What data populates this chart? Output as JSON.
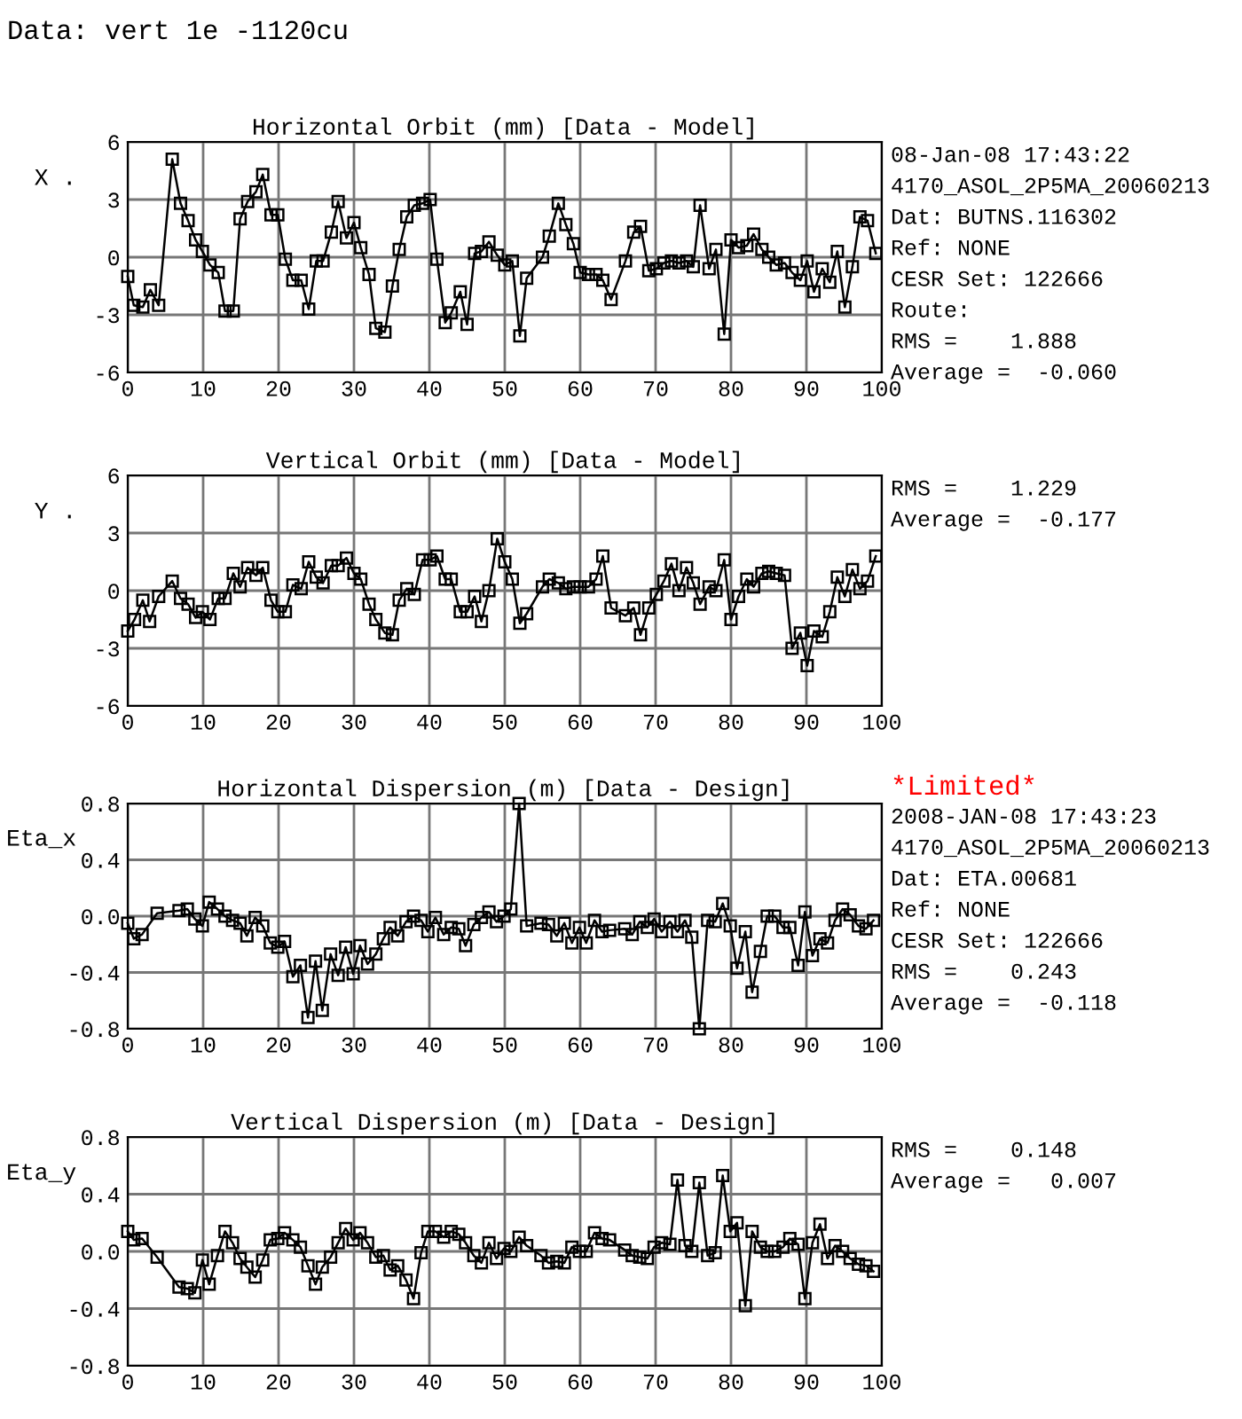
{
  "chart_data": [
    {
      "type": "line",
      "title": "Horizontal Orbit (mm) [Data - Model]",
      "ylabel": "X .",
      "annotations": [
        "Data: vert 1e -1120cu",
        "08-Jan-08 17:43:22",
        "4170_ASOL_2P5MA_20060213",
        "Dat: BUTNS.116302",
        "Ref: NONE",
        "CESR Set: 122666",
        "Route:",
        "RMS =    1.888",
        "Average =  -0.060"
      ],
      "x": [
        0,
        0.8,
        2,
        3,
        4.1,
        5.9,
        7,
        8,
        9,
        9.9,
        10.9,
        12,
        12.9,
        14,
        14.9,
        15.9,
        17,
        17.9,
        19,
        19.9,
        20.9,
        21.9,
        23,
        24,
        25,
        25.9,
        27,
        27.9,
        29,
        30,
        30.9,
        32,
        32.9,
        34.1,
        35.1,
        36,
        37,
        38,
        39.1,
        40.1,
        41,
        42.1,
        42.9,
        44.1,
        45,
        46,
        46.9,
        47.9,
        49,
        50,
        51,
        52,
        52.9,
        55,
        55.9,
        57.1,
        58.1,
        59.1,
        60,
        61.1,
        62.1,
        63,
        64.1,
        66,
        67.1,
        68,
        69.1,
        70.1,
        71.1,
        72.1,
        73.1,
        74.1,
        75,
        75.9,
        77.1,
        78,
        79.1,
        80,
        81,
        82.1,
        83,
        84.1,
        85,
        86,
        87.1,
        88.1,
        89.2,
        90.1,
        91,
        92.1,
        93.1,
        94.1,
        95.1,
        96.1,
        97.1,
        98.1,
        99.2
      ],
      "series": [
        {
          "color": "#000000",
          "values": [
            -1.0,
            -2.5,
            -2.6,
            -1.7,
            -2.5,
            5.1,
            2.8,
            1.9,
            0.9,
            0.3,
            -0.4,
            -0.8,
            -2.8,
            -2.8,
            2.0,
            2.9,
            3.4,
            4.3,
            2.2,
            2.2,
            -0.1,
            -1.2,
            -1.2,
            -2.7,
            -0.2,
            -0.2,
            1.3,
            2.9,
            1.0,
            1.8,
            0.5,
            -0.9,
            -3.7,
            -3.9,
            -1.5,
            0.4,
            2.1,
            2.7,
            2.8,
            3.0,
            -0.1,
            -3.4,
            -2.9,
            -1.8,
            -3.5,
            0.2,
            0.3,
            0.8,
            0.1,
            -0.4,
            -0.2,
            -4.1,
            -1.1,
            0.0,
            1.1,
            2.8,
            1.7,
            0.7,
            -0.8,
            -0.9,
            -0.9,
            -1.2,
            -2.2,
            -0.2,
            1.3,
            1.6,
            -0.7,
            -0.6,
            -0.3,
            -0.2,
            -0.3,
            -0.2,
            -0.5,
            2.7,
            -0.6,
            0.4,
            -4.0,
            0.9,
            0.5,
            0.6,
            1.2,
            0.4,
            0.0,
            -0.4,
            -0.3,
            -0.8,
            -1.2,
            -0.2,
            -1.8,
            -0.6,
            -1.3,
            0.3,
            -2.6,
            -0.5,
            2.1,
            1.9,
            0.2
          ]
        }
      ],
      "xlim": [
        0,
        100
      ],
      "xticks": [
        0,
        10,
        20,
        30,
        40,
        50,
        60,
        70,
        80,
        90,
        100
      ],
      "ylim": [
        -6,
        6
      ],
      "yticks": [
        -6,
        -3,
        0,
        3,
        6
      ],
      "grid": true,
      "marker": "square",
      "line_style": "solid"
    },
    {
      "type": "line",
      "title": "Vertical Orbit (mm) [Data - Model]",
      "ylabel": "Y .",
      "annotations": [
        "RMS =    1.229",
        "Average =  -0.177"
      ],
      "x": [
        0,
        0.9,
        2,
        2.9,
        4.1,
        5.9,
        7,
        8,
        9,
        9.9,
        10.9,
        12,
        12.9,
        14,
        14.9,
        15.9,
        17,
        17.9,
        19,
        19.9,
        20.9,
        21.9,
        23,
        24,
        25,
        25.9,
        27,
        27.9,
        29,
        30,
        30.9,
        32,
        32.9,
        34.1,
        35.1,
        36,
        37,
        38,
        39.1,
        40.1,
        41,
        42.1,
        42.9,
        44.1,
        45,
        46,
        46.9,
        47.9,
        49,
        50,
        51,
        52,
        52.9,
        55,
        55.9,
        57.1,
        58.1,
        59.1,
        60,
        61.1,
        62.1,
        63,
        64.1,
        66,
        67.1,
        68,
        69.1,
        70.1,
        71.1,
        72.1,
        73.1,
        74.1,
        75,
        75.9,
        77.1,
        78,
        79.1,
        80,
        81,
        82.1,
        83,
        84.1,
        85,
        86,
        87.1,
        88.1,
        89.2,
        90.1,
        91,
        92.1,
        93.1,
        94.1,
        95.1,
        96.1,
        97.1,
        98.1,
        99.2
      ],
      "series": [
        {
          "color": "#000000",
          "values": [
            -2.1,
            -1.5,
            -0.5,
            -1.6,
            -0.3,
            0.5,
            -0.4,
            -0.7,
            -1.4,
            -1.1,
            -1.5,
            -0.4,
            -0.4,
            0.9,
            0.2,
            1.2,
            0.8,
            1.2,
            -0.5,
            -1.1,
            -1.1,
            0.3,
            0.1,
            1.5,
            0.7,
            0.4,
            1.3,
            1.3,
            1.7,
            0.9,
            0.6,
            -0.7,
            -1.5,
            -2.2,
            -2.3,
            -0.5,
            0.1,
            -0.2,
            1.6,
            1.6,
            1.8,
            0.6,
            0.6,
            -1.1,
            -1.1,
            -0.3,
            -1.6,
            0.0,
            2.7,
            1.5,
            0.6,
            -1.7,
            -1.2,
            0.2,
            0.6,
            0.4,
            0.1,
            0.2,
            0.2,
            0.2,
            0.6,
            1.8,
            -0.9,
            -1.3,
            -0.9,
            -2.3,
            -0.9,
            -0.2,
            0.5,
            1.4,
            0.0,
            1.2,
            0.4,
            -0.7,
            0.2,
            0.0,
            1.6,
            -1.5,
            -0.3,
            0.6,
            0.2,
            0.9,
            1.0,
            0.9,
            0.8,
            -3.0,
            -2.2,
            -3.9,
            -2.1,
            -2.4,
            -1.1,
            0.7,
            -0.3,
            1.1,
            0.1,
            0.5,
            1.8
          ]
        }
      ],
      "xlim": [
        0,
        100
      ],
      "xticks": [
        0,
        10,
        20,
        30,
        40,
        50,
        60,
        70,
        80,
        90,
        100
      ],
      "ylim": [
        -6,
        6
      ],
      "yticks": [
        -6,
        -3,
        0,
        3,
        6
      ],
      "grid": true,
      "marker": "square",
      "line_style": "solid"
    },
    {
      "type": "line",
      "title": "Horizontal Dispersion (m) [Data - Design]",
      "subtitle": "*Limited*",
      "ylabel": "Eta_x",
      "annotations": [
        "2008-JAN-08 17:43:23",
        "4170_ASOL_2P5MA_20060213",
        "Dat: ETA.00681",
        "Ref: NONE",
        "CESR Set: 122666",
        "RMS =    0.243",
        "Average =  -0.118"
      ],
      "x": [
        0,
        0.8,
        1.9,
        3.9,
        6.8,
        7.9,
        8.9,
        9.9,
        10.8,
        11.9,
        12.9,
        13.9,
        14.9,
        15.8,
        16.9,
        17.9,
        18.9,
        19.9,
        20.8,
        21.9,
        22.9,
        23.9,
        24.9,
        25.8,
        26.9,
        27.9,
        28.9,
        29.9,
        30.8,
        31.8,
        32.9,
        33.9,
        34.8,
        35.8,
        36.9,
        37.9,
        38.9,
        39.8,
        40.8,
        41.9,
        42.9,
        43.9,
        44.8,
        45.9,
        46.9,
        47.9,
        48.9,
        49.9,
        50.8,
        51.9,
        52.9,
        54.8,
        55.8,
        56.9,
        57.9,
        58.9,
        59.9,
        60.8,
        61.9,
        62.9,
        63.9,
        65.9,
        66.9,
        67.9,
        68.9,
        69.8,
        70.8,
        71.9,
        72.9,
        73.9,
        74.8,
        75.8,
        76.9,
        77.9,
        78.9,
        79.9,
        80.8,
        81.9,
        82.8,
        83.9,
        84.8,
        85.8,
        86.9,
        87.8,
        88.9,
        89.8,
        90.8,
        91.8,
        92.8,
        93.8,
        94.8,
        95.8,
        96.9,
        97.9,
        98.9
      ],
      "series": [
        {
          "color": "#000000",
          "values": [
            -0.05,
            -0.16,
            -0.13,
            0.02,
            0.04,
            0.05,
            -0.02,
            -0.07,
            0.1,
            0.05,
            0.0,
            -0.03,
            -0.05,
            -0.14,
            -0.01,
            -0.07,
            -0.19,
            -0.22,
            -0.18,
            -0.43,
            -0.35,
            -0.72,
            -0.32,
            -0.67,
            -0.27,
            -0.42,
            -0.22,
            -0.41,
            -0.21,
            -0.34,
            -0.27,
            -0.16,
            -0.08,
            -0.14,
            -0.04,
            0.0,
            -0.03,
            -0.11,
            -0.01,
            -0.13,
            -0.08,
            -0.09,
            -0.21,
            -0.06,
            -0.01,
            0.03,
            -0.04,
            0.0,
            0.05,
            0.8,
            -0.07,
            -0.05,
            -0.06,
            -0.14,
            -0.05,
            -0.19,
            -0.08,
            -0.19,
            -0.03,
            -0.11,
            -0.1,
            -0.09,
            -0.13,
            -0.04,
            -0.08,
            -0.02,
            -0.11,
            -0.04,
            -0.11,
            -0.03,
            -0.15,
            -0.8,
            -0.03,
            -0.04,
            0.09,
            -0.07,
            -0.37,
            -0.11,
            -0.54,
            -0.25,
            0.0,
            0.0,
            -0.08,
            -0.08,
            -0.35,
            0.03,
            -0.28,
            -0.16,
            -0.19,
            -0.03,
            0.05,
            0.01,
            -0.07,
            -0.09,
            -0.03
          ]
        }
      ],
      "xlim": [
        0,
        100
      ],
      "xticks": [
        0,
        10,
        20,
        30,
        40,
        50,
        60,
        70,
        80,
        90,
        100
      ],
      "ylim": [
        -0.8,
        0.8
      ],
      "yticks": [
        {
          "value": -0.8,
          "label": "-0.8"
        },
        {
          "value": -0.4,
          "label": "-0.4"
        },
        {
          "value": 0,
          "label": "0.0"
        },
        {
          "value": 0.4,
          "label": "0.4"
        },
        {
          "value": 0.8,
          "label": "0.8"
        }
      ],
      "grid": true,
      "marker": "square",
      "line_style": "solid"
    },
    {
      "type": "line",
      "title": "Vertical Dispersion (m) [Data - Design]",
      "ylabel": "Eta_y",
      "annotations": [
        "RMS =    0.148",
        "Average =   0.007"
      ],
      "x": [
        0,
        0.8,
        1.9,
        3.9,
        6.8,
        7.9,
        8.9,
        9.9,
        10.8,
        11.9,
        12.9,
        13.9,
        14.9,
        15.8,
        16.9,
        17.9,
        18.9,
        19.9,
        20.8,
        21.9,
        22.9,
        23.9,
        24.9,
        25.8,
        26.9,
        27.9,
        28.9,
        29.9,
        30.8,
        31.8,
        32.9,
        33.9,
        34.8,
        35.8,
        36.9,
        37.9,
        38.9,
        39.8,
        40.8,
        41.9,
        42.9,
        43.9,
        44.8,
        45.9,
        46.9,
        47.9,
        48.9,
        49.9,
        50.8,
        51.9,
        52.9,
        54.8,
        55.8,
        56.9,
        57.9,
        58.9,
        59.9,
        60.8,
        61.9,
        62.9,
        63.9,
        65.9,
        66.9,
        67.9,
        68.9,
        69.8,
        70.8,
        71.9,
        72.9,
        73.9,
        74.8,
        75.8,
        76.9,
        77.9,
        78.9,
        79.9,
        80.8,
        81.9,
        82.8,
        83.9,
        84.8,
        85.8,
        86.9,
        87.8,
        88.9,
        89.8,
        90.8,
        91.8,
        92.8,
        93.8,
        94.8,
        95.8,
        96.9,
        97.9,
        98.9
      ],
      "series": [
        {
          "color": "#000000",
          "values": [
            0.14,
            0.08,
            0.09,
            -0.04,
            -0.25,
            -0.26,
            -0.29,
            -0.06,
            -0.23,
            -0.03,
            0.14,
            0.06,
            -0.05,
            -0.11,
            -0.18,
            -0.06,
            0.08,
            0.09,
            0.13,
            0.08,
            0.03,
            -0.1,
            -0.23,
            -0.11,
            -0.04,
            0.06,
            0.16,
            0.08,
            0.13,
            0.06,
            -0.04,
            -0.03,
            -0.13,
            -0.1,
            -0.2,
            -0.33,
            -0.01,
            0.14,
            0.14,
            0.1,
            0.14,
            0.12,
            0.06,
            -0.03,
            -0.08,
            0.06,
            -0.05,
            0.02,
            0.0,
            0.1,
            0.04,
            -0.03,
            -0.08,
            -0.07,
            -0.08,
            0.03,
            0.0,
            0.0,
            0.13,
            0.09,
            0.08,
            0.01,
            -0.03,
            -0.04,
            -0.05,
            0.03,
            0.06,
            0.05,
            0.5,
            0.04,
            0.0,
            0.48,
            -0.03,
            -0.01,
            0.53,
            0.14,
            0.2,
            -0.38,
            0.14,
            0.03,
            0.0,
            0.0,
            0.03,
            0.09,
            0.05,
            -0.33,
            0.06,
            0.19,
            -0.05,
            0.04,
            0.0,
            -0.05,
            -0.09,
            -0.1,
            -0.14
          ]
        }
      ],
      "xlim": [
        0,
        100
      ],
      "xticks": [
        0,
        10,
        20,
        30,
        40,
        50,
        60,
        70,
        80,
        90,
        100
      ],
      "ylim": [
        -0.8,
        0.8
      ],
      "yticks": [
        {
          "value": -0.8,
          "label": "-0.8"
        },
        {
          "value": -0.4,
          "label": "-0.4"
        },
        {
          "value": 0,
          "label": "0.0"
        },
        {
          "value": 0.4,
          "label": "0.4"
        },
        {
          "value": 0.8,
          "label": "0.8"
        }
      ],
      "grid": true,
      "marker": "square",
      "line_style": "solid"
    }
  ]
}
